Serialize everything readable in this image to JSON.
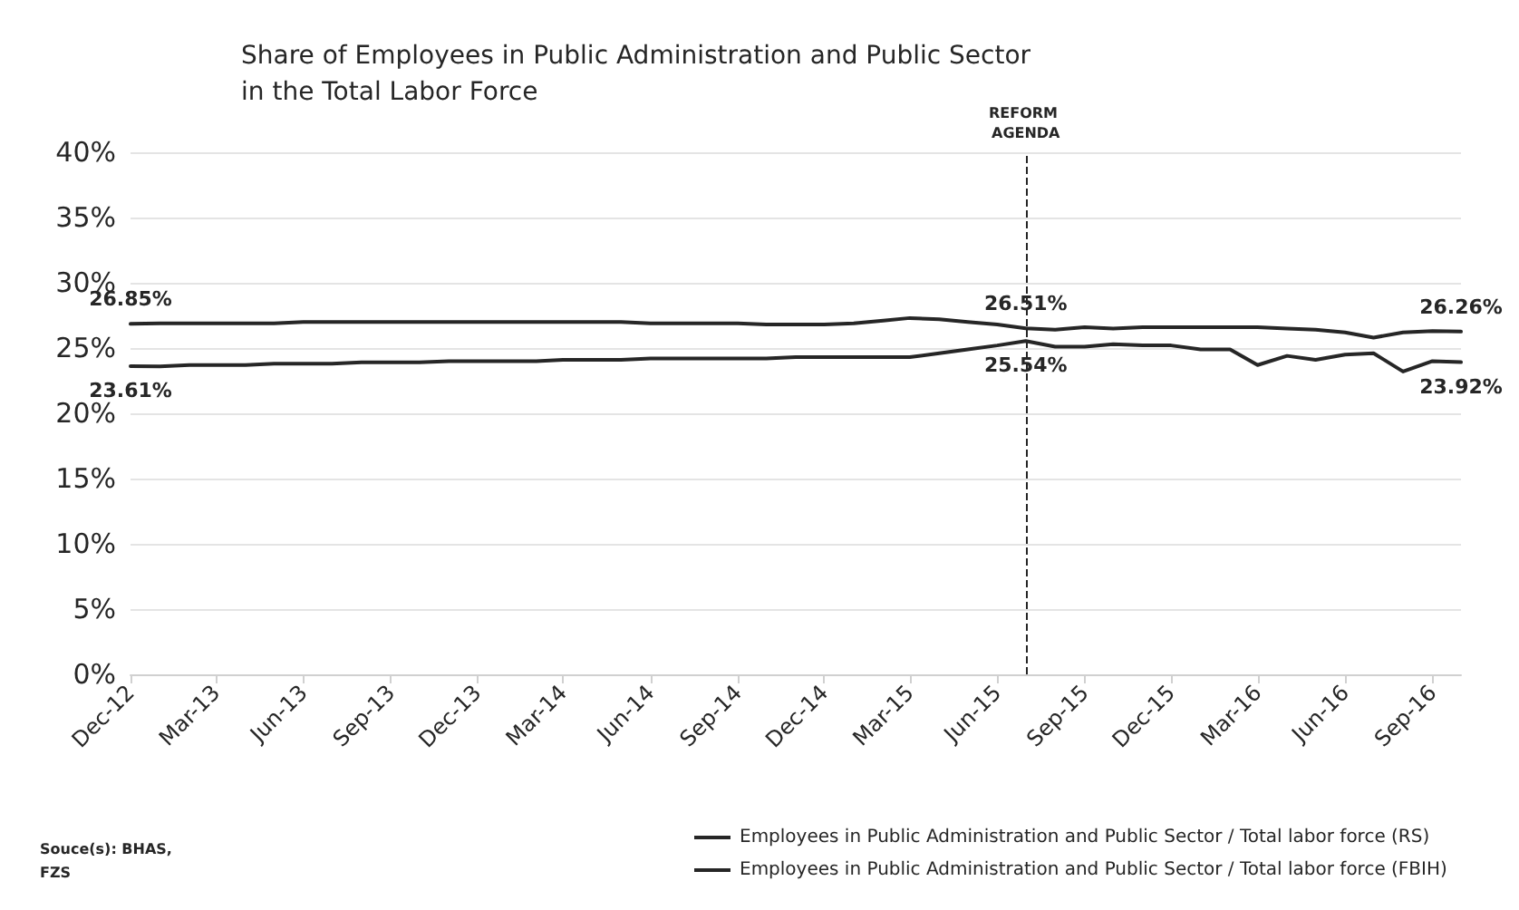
{
  "chart_data": {
    "type": "line",
    "title": "Share of Employees in Public Administration and Public Sector\nin the Total Labor Force",
    "x": [
      "2012-12",
      "2013-01",
      "2013-02",
      "2013-03",
      "2013-04",
      "2013-05",
      "2013-06",
      "2013-07",
      "2013-08",
      "2013-09",
      "2013-10",
      "2013-11",
      "2013-12",
      "2014-01",
      "2014-02",
      "2014-03",
      "2014-04",
      "2014-05",
      "2014-06",
      "2014-07",
      "2014-08",
      "2014-09",
      "2014-10",
      "2014-11",
      "2014-12",
      "2015-01",
      "2015-02",
      "2015-03",
      "2015-04",
      "2015-05",
      "2015-06",
      "2015-07",
      "2015-08",
      "2015-09",
      "2015-10",
      "2015-11",
      "2015-12",
      "2016-01",
      "2016-02",
      "2016-03",
      "2016-04",
      "2016-05",
      "2016-06",
      "2016-07",
      "2016-08",
      "2016-09",
      "2016-10"
    ],
    "series": [
      {
        "name": "Employees in Public Administration and Public Sector / Total labor force (RS)",
        "color": "#262626",
        "values": [
          26.85,
          26.9,
          26.9,
          26.9,
          26.9,
          26.9,
          27.0,
          27.0,
          27.0,
          27.0,
          27.0,
          27.0,
          27.0,
          27.0,
          27.0,
          27.0,
          27.0,
          27.0,
          26.9,
          26.9,
          26.9,
          26.9,
          26.8,
          26.8,
          26.8,
          26.9,
          27.1,
          27.3,
          27.2,
          27.0,
          26.8,
          26.51,
          26.4,
          26.6,
          26.5,
          26.6,
          26.6,
          26.6,
          26.6,
          26.6,
          26.5,
          26.4,
          26.2,
          25.8,
          26.2,
          26.3,
          26.26
        ],
        "value_labels": [
          "26.85%",
          null,
          null,
          null,
          null,
          null,
          null,
          null,
          null,
          null,
          null,
          null,
          null,
          null,
          null,
          null,
          null,
          null,
          null,
          null,
          null,
          null,
          null,
          null,
          null,
          null,
          null,
          null,
          null,
          null,
          null,
          "26.51%",
          null,
          null,
          null,
          null,
          null,
          null,
          null,
          null,
          null,
          null,
          null,
          null,
          null,
          null,
          "26.26%"
        ]
      },
      {
        "name": "Employees in Public Administration and Public Sector / Total labor force (FBIH)",
        "color": "#262626",
        "values": [
          23.61,
          23.6,
          23.7,
          23.7,
          23.7,
          23.8,
          23.8,
          23.8,
          23.9,
          23.9,
          23.9,
          24.0,
          24.0,
          24.0,
          24.0,
          24.1,
          24.1,
          24.1,
          24.2,
          24.2,
          24.2,
          24.2,
          24.2,
          24.3,
          24.3,
          24.3,
          24.3,
          24.3,
          24.6,
          24.9,
          25.2,
          25.54,
          25.1,
          25.1,
          25.3,
          25.2,
          25.2,
          24.9,
          24.9,
          23.7,
          24.4,
          24.1,
          24.5,
          24.6,
          23.2,
          24.0,
          23.92
        ],
        "value_labels": [
          "23.61%",
          null,
          null,
          null,
          null,
          null,
          null,
          null,
          null,
          null,
          null,
          null,
          null,
          null,
          null,
          null,
          null,
          null,
          null,
          null,
          null,
          null,
          null,
          null,
          null,
          null,
          null,
          null,
          null,
          null,
          null,
          "25.54%",
          null,
          null,
          null,
          null,
          null,
          null,
          null,
          null,
          null,
          null,
          null,
          null,
          null,
          null,
          "23.92%"
        ]
      }
    ],
    "xlim": [
      "2012-12",
      "2016-10"
    ],
    "xticks": [
      {
        "value": "2012-12",
        "label": "Dec-12"
      },
      {
        "value": "2013-03",
        "label": "Mar-13"
      },
      {
        "value": "2013-06",
        "label": "Jun-13"
      },
      {
        "value": "2013-09",
        "label": "Sep-13"
      },
      {
        "value": "2013-12",
        "label": "Dec-13"
      },
      {
        "value": "2014-03",
        "label": "Mar-14"
      },
      {
        "value": "2014-06",
        "label": "Jun-14"
      },
      {
        "value": "2014-09",
        "label": "Sep-14"
      },
      {
        "value": "2014-12",
        "label": "Dec-14"
      },
      {
        "value": "2015-03",
        "label": "Mar-15"
      },
      {
        "value": "2015-06",
        "label": "Jun-15"
      },
      {
        "value": "2015-09",
        "label": "Sep-15"
      },
      {
        "value": "2015-12",
        "label": "Dec-15"
      },
      {
        "value": "2016-03",
        "label": "Mar-16"
      },
      {
        "value": "2016-06",
        "label": "Jun-16"
      },
      {
        "value": "2016-09",
        "label": "Sep-16"
      }
    ],
    "ylim": [
      0,
      40
    ],
    "yticks": [
      {
        "value": 0,
        "label": "0%"
      },
      {
        "value": 5,
        "label": "5%"
      },
      {
        "value": 10,
        "label": "10%"
      },
      {
        "value": 15,
        "label": "15%"
      },
      {
        "value": 20,
        "label": "20%"
      },
      {
        "value": 25,
        "label": "25%"
      },
      {
        "value": 30,
        "label": "30%"
      },
      {
        "value": 35,
        "label": "35%"
      },
      {
        "value": 40,
        "label": "40%"
      }
    ],
    "grid": "y",
    "legend": "bottom",
    "marker": "none",
    "line_style": "solid",
    "ref_lines": [
      {
        "axis": "x",
        "value": "2015-07",
        "label": "REFORM AGENDA",
        "color": "#262626",
        "line_style": "dashed"
      }
    ],
    "annotations": [
      "Souce(s): BHAS, FZS"
    ]
  }
}
